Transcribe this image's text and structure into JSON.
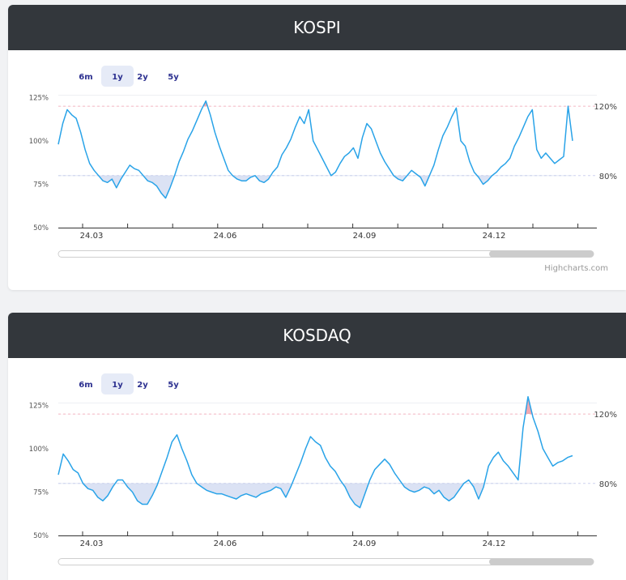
{
  "credit": "Highcharts.com",
  "range_buttons": [
    "6m",
    "1y",
    "2y",
    "5y"
  ],
  "selected_range": "1y",
  "chart_data": [
    {
      "type": "area",
      "title": "KOSPI",
      "xlabel": "",
      "ylabel": "",
      "x_ticks": [
        "24.03",
        "24.06",
        "24.09",
        "24.12"
      ],
      "y_ticks": [
        "50%",
        "75%",
        "100%",
        "125%"
      ],
      "ylim": [
        50,
        128
      ],
      "plot_lines": [
        {
          "value": 120,
          "label": "120%"
        },
        {
          "value": 80,
          "label": "80%"
        }
      ],
      "series": [
        {
          "values": [
            98,
            110,
            118,
            115,
            113,
            105,
            95,
            87,
            83,
            80,
            77,
            76,
            78,
            73,
            78,
            82,
            86,
            84,
            83,
            80,
            77,
            76,
            74,
            70,
            67,
            73,
            80,
            88,
            94,
            101,
            106,
            112,
            118,
            123,
            115,
            105,
            97,
            90,
            83,
            80,
            78,
            77,
            77,
            79,
            80,
            77,
            76,
            78,
            82,
            85,
            92,
            96,
            101,
            108,
            114,
            110,
            118,
            100,
            95,
            90,
            85,
            80,
            82,
            87,
            91,
            93,
            96,
            90,
            102,
            110,
            107,
            100,
            93,
            88,
            84,
            80,
            78,
            77,
            80,
            83,
            81,
            79,
            74,
            80,
            86,
            95,
            103,
            108,
            114,
            119,
            100,
            97,
            88,
            82,
            79,
            75,
            77,
            80,
            82,
            85,
            87,
            90,
            97,
            102,
            108,
            114,
            118,
            95,
            90,
            93,
            90,
            87,
            89,
            91,
            120,
            100
          ]
        }
      ]
    },
    {
      "type": "area",
      "title": "KOSDAQ",
      "xlabel": "",
      "ylabel": "",
      "x_ticks": [
        "24.03",
        "24.06",
        "24.09",
        "24.12"
      ],
      "y_ticks": [
        "50%",
        "75%",
        "100%",
        "125%"
      ],
      "ylim": [
        50,
        128
      ],
      "plot_lines": [
        {
          "value": 120,
          "label": "120%"
        },
        {
          "value": 80,
          "label": "80%"
        }
      ],
      "series": [
        {
          "values": [
            85,
            97,
            93,
            88,
            86,
            80,
            77,
            76,
            72,
            70,
            73,
            78,
            82,
            82,
            78,
            75,
            70,
            68,
            68,
            73,
            79,
            87,
            95,
            104,
            108,
            100,
            93,
            85,
            80,
            78,
            76,
            75,
            74,
            74,
            73,
            72,
            71,
            73,
            74,
            73,
            72,
            74,
            75,
            76,
            78,
            77,
            72,
            78,
            85,
            92,
            100,
            107,
            104,
            102,
            95,
            90,
            87,
            82,
            78,
            72,
            68,
            66,
            74,
            82,
            88,
            91,
            94,
            91,
            86,
            82,
            78,
            76,
            75,
            76,
            78,
            77,
            74,
            76,
            72,
            70,
            72,
            76,
            80,
            82,
            78,
            71,
            78,
            90,
            95,
            98,
            93,
            90,
            86,
            82,
            112,
            130,
            118,
            110,
            100,
            95,
            90,
            92,
            93,
            95,
            96
          ]
        }
      ]
    }
  ]
}
